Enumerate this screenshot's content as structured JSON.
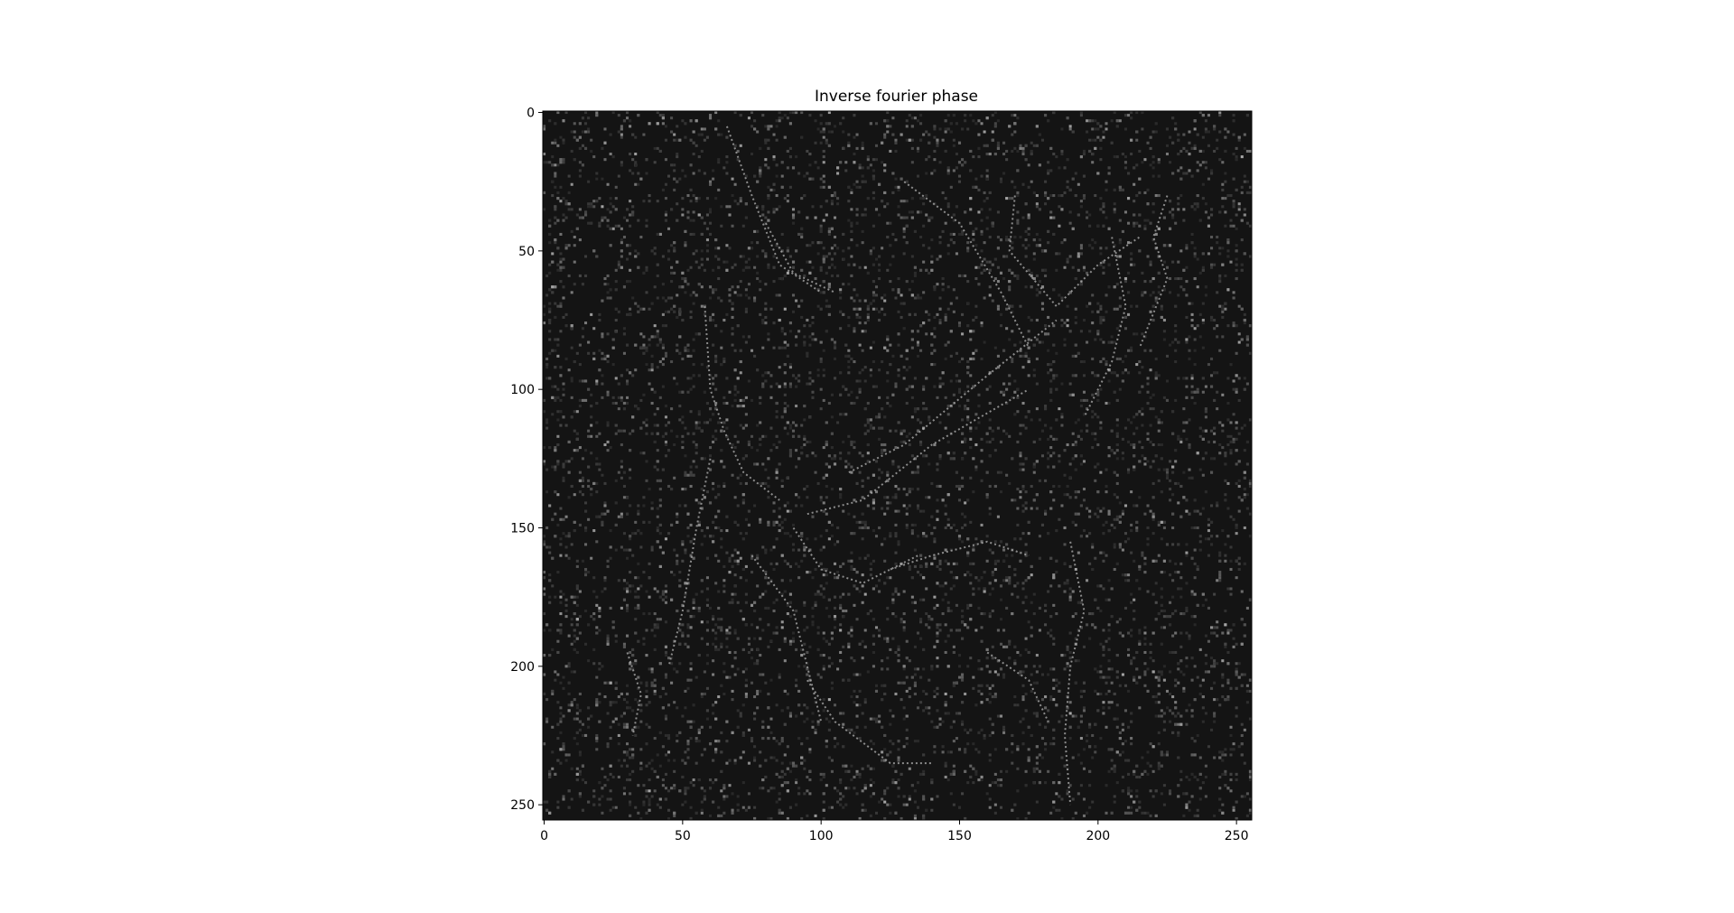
{
  "chart_data": {
    "type": "heatmap",
    "title": "Inverse fourier phase",
    "colormap": "gray",
    "image_size": [
      256,
      256
    ],
    "xlim": [
      0,
      255
    ],
    "ylim": [
      255,
      0
    ],
    "xticks": [
      0,
      50,
      100,
      150,
      200,
      250
    ],
    "yticks": [
      0,
      50,
      100,
      150,
      200,
      250
    ],
    "xlabel": "",
    "ylabel": "",
    "grid": false,
    "background_color": "#141414",
    "edge_color": "#b4b4b4"
  }
}
